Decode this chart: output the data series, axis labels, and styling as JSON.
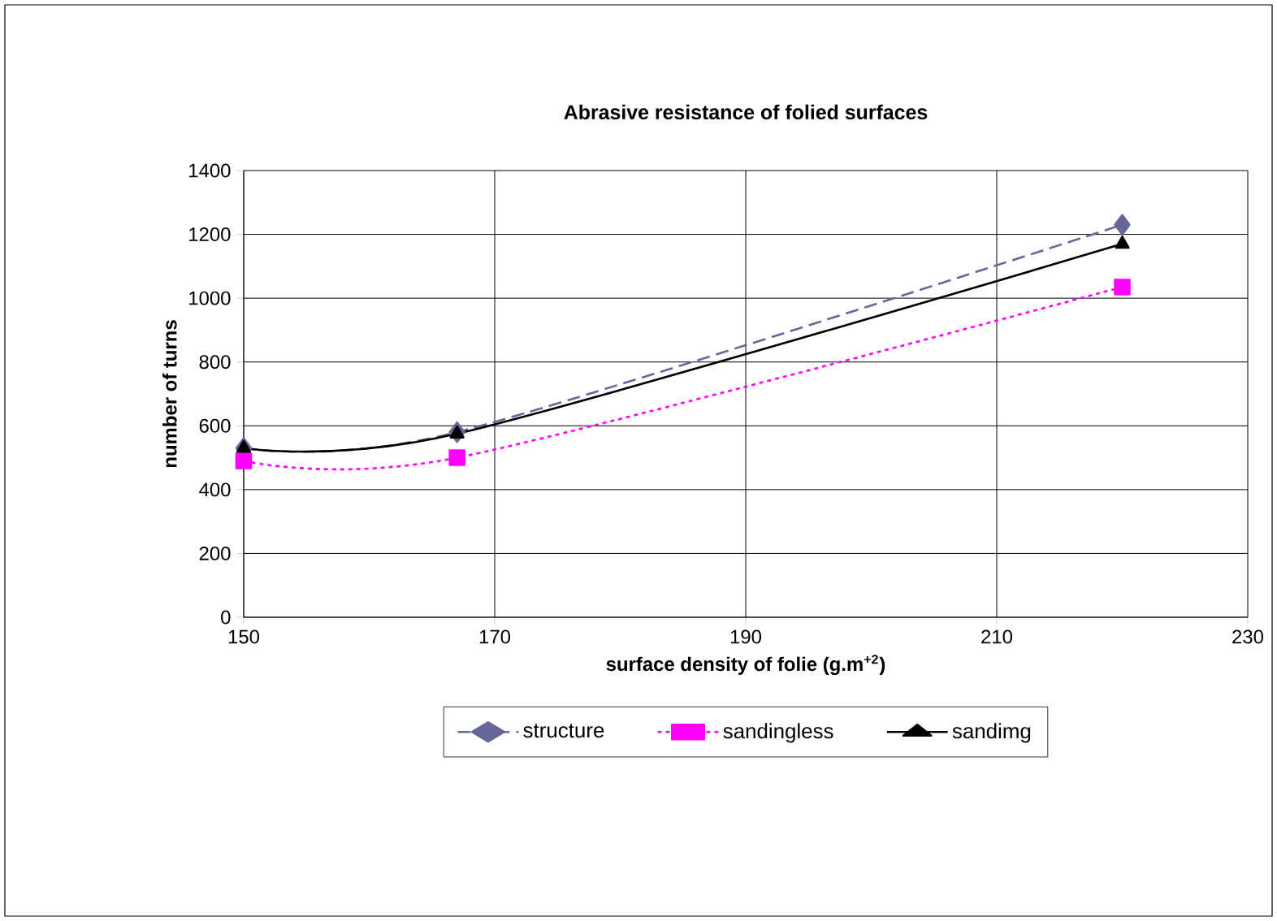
{
  "chart_data": {
    "type": "line",
    "title": "Abrasive resistance of folied surfaces",
    "xlabel": "surface density of folie (g.m$^{+2}$)",
    "ylabel": "number of turns",
    "x": [
      150,
      167,
      220
    ],
    "series": [
      {
        "name": "structure",
        "color": "#666699",
        "values": [
          530,
          580,
          1230
        ],
        "marker": "diamond",
        "line_style": "dashed"
      },
      {
        "name": "sandingless",
        "color": "#ff00ff",
        "values": [
          490,
          500,
          1035
        ],
        "marker": "square",
        "line_style": "dotted"
      },
      {
        "name": "sandimg",
        "color": "#000000",
        "values": [
          530,
          575,
          1170
        ],
        "marker": "triangle",
        "line_style": "solid"
      }
    ],
    "xlim": [
      150,
      230
    ],
    "xticks": [
      150,
      170,
      190,
      210,
      230
    ],
    "ylim": [
      0,
      1400
    ],
    "yticks": [
      0,
      200,
      400,
      600,
      800,
      1000,
      1200,
      1400
    ],
    "grid": true,
    "legend": "bottom"
  }
}
